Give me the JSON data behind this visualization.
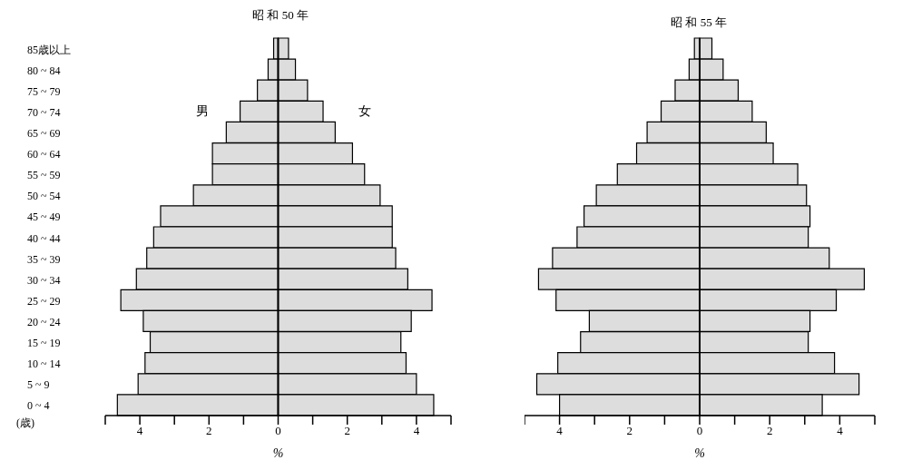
{
  "chart_data": [
    {
      "type": "bar",
      "orientation": "horizontal",
      "stacked": true,
      "title": "昭 和 50 年",
      "xlabel": "%",
      "categories": [
        "85歳以上",
        "80 ~ 84",
        "75 ~ 79",
        "70 ~ 74",
        "65 ~ 69",
        "60 ~ 64",
        "55 ~ 59",
        "50 ~ 54",
        "45 ~ 49",
        "40 ~ 44",
        "35 ~ 39",
        "30 ~ 34",
        "25 ~ 29",
        "20 ~ 24",
        "15 ~ 19",
        "10 ~ 14",
        "5 ~ 9",
        "0 ~ 4"
      ],
      "series": [
        {
          "name": "男",
          "color": "#dddddd",
          "values": [
            -0.13,
            -0.29,
            -0.6,
            -1.1,
            -1.5,
            -1.9,
            -1.9,
            -2.45,
            -3.4,
            -3.6,
            -3.8,
            -4.1,
            -4.55,
            -3.9,
            -3.7,
            -3.85,
            -4.05,
            -4.65
          ]
        },
        {
          "name": "女",
          "color": "#dddddd",
          "values": [
            0.3,
            0.5,
            0.85,
            1.3,
            1.65,
            2.15,
            2.5,
            2.95,
            3.3,
            3.3,
            3.4,
            3.75,
            4.45,
            3.85,
            3.55,
            3.7,
            4.0,
            4.5
          ]
        }
      ],
      "xlim": [
        -5,
        5
      ],
      "xticks": [
        {
          "value": -5,
          "label": null
        },
        {
          "value": -4,
          "label": "4"
        },
        {
          "value": -3,
          "label": null
        },
        {
          "value": -2,
          "label": "2"
        },
        {
          "value": -1,
          "label": null
        },
        0,
        {
          "value": 1,
          "label": null
        },
        2,
        {
          "value": 3,
          "label": null
        },
        4,
        {
          "value": 5,
          "label": null
        }
      ],
      "ref_lines": [
        {
          "axis": "x",
          "value": 0,
          "color": "#000000"
        }
      ],
      "annotations": [
        "(歳)"
      ],
      "legend": false,
      "grid": false
    },
    {
      "type": "bar",
      "orientation": "horizontal",
      "stacked": true,
      "title": "昭 和 55 年",
      "xlabel": "%",
      "categories": [
        null,
        null,
        null,
        null,
        null,
        null,
        null,
        null,
        null,
        null,
        null,
        null,
        null,
        null,
        null,
        null,
        null,
        null
      ],
      "series": [
        {
          "color": "#dddddd",
          "values": [
            -0.15,
            -0.3,
            -0.7,
            -1.1,
            -1.5,
            -1.8,
            -2.35,
            -2.95,
            -3.3,
            -3.5,
            -4.2,
            -4.6,
            -4.1,
            -3.15,
            -3.4,
            -4.05,
            -4.65,
            -4.0
          ]
        },
        {
          "color": "#dddddd",
          "values": [
            0.35,
            0.67,
            1.1,
            1.5,
            1.9,
            2.1,
            2.8,
            3.05,
            3.15,
            3.1,
            3.7,
            4.7,
            3.9,
            3.15,
            3.1,
            3.85,
            4.55,
            3.5
          ]
        }
      ],
      "xlim": [
        -5,
        5
      ],
      "xticks": [
        {
          "value": -5,
          "label": null
        },
        {
          "value": -4,
          "label": "4"
        },
        {
          "value": -3,
          "label": null
        },
        {
          "value": -2,
          "label": "2"
        },
        {
          "value": -1,
          "label": null
        },
        0,
        {
          "value": 1,
          "label": null
        },
        2,
        {
          "value": 3,
          "label": null
        },
        4,
        {
          "value": 5,
          "label": null
        }
      ],
      "ref_lines": [
        {
          "axis": "x",
          "value": 0,
          "color": "#000000"
        }
      ],
      "tick_labels": "x",
      "legend": false,
      "grid": false
    }
  ]
}
